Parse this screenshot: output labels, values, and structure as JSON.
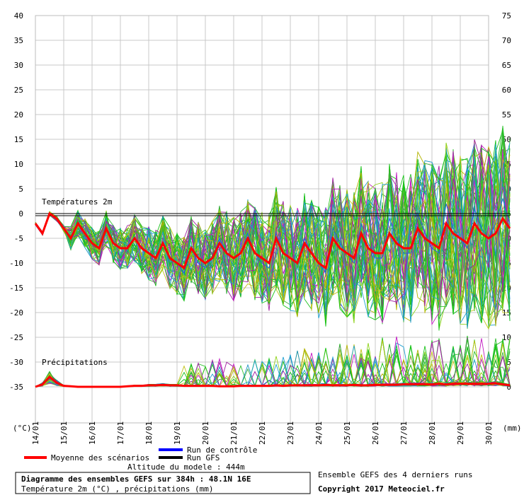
{
  "chart_data": {
    "type": "line",
    "title": "Diagramme des ensembles GEFS sur 384h : 48.1N 16E",
    "subtitle": "Température 2m (°C) , précipitations (mm)",
    "left_axis_unit": "(°C)",
    "right_axis_unit": "(mm)",
    "temp_axis": {
      "min": -35,
      "max": 40,
      "ticks": [
        40,
        35,
        30,
        25,
        20,
        15,
        10,
        5,
        0,
        -5,
        -10,
        -15,
        -20,
        -25,
        -30,
        -35
      ]
    },
    "precip_axis": {
      "ticks": [
        75,
        70,
        65,
        60,
        55,
        50,
        45,
        40,
        35,
        30,
        25,
        20,
        15,
        10,
        5,
        0
      ]
    },
    "dates": [
      "14/01",
      "15/01",
      "16/01",
      "17/01",
      "18/01",
      "19/01",
      "20/01",
      "21/01",
      "22/01",
      "23/01",
      "24/01",
      "25/01",
      "26/01",
      "27/01",
      "28/01",
      "29/01",
      "30/01"
    ],
    "section_labels": {
      "temperature": "Températures 2m",
      "precipitation": "Précipitations"
    },
    "altitude": "Altitude du modele : 444m",
    "legend": [
      {
        "name": "Moyenne des scénarios",
        "color": "#ff0000"
      },
      {
        "name": "Run de contrôle",
        "color": "#0000ff"
      },
      {
        "name": "Run GFS",
        "color": "#000000"
      }
    ],
    "footer_note": "Ensemble GEFS des 4 derniers runs",
    "copyright": "Copyright 2017 Meteociel.fr",
    "steps_per_day": 4,
    "mean_temperature": [
      -2,
      -4,
      0,
      -1,
      -3,
      -5,
      -2,
      -4,
      -6,
      -7,
      -3,
      -6,
      -7,
      -7,
      -5,
      -7,
      -8,
      -9,
      -6,
      -9,
      -10,
      -11,
      -7,
      -9,
      -10,
      -9,
      -6,
      -8,
      -9,
      -8,
      -5,
      -8,
      -9,
      -10,
      -5,
      -8,
      -9,
      -10,
      -6,
      -8,
      -10,
      -11,
      -5,
      -7,
      -8,
      -9,
      -4,
      -7,
      -8,
      -8,
      -4,
      -6,
      -7,
      -7,
      -3,
      -5,
      -6,
      -7,
      -2,
      -4,
      -5,
      -6,
      -2,
      -4,
      -5,
      -4,
      -1,
      -3
    ],
    "control_temperature": [
      -2,
      -4,
      0,
      -1,
      -3,
      -5,
      -2,
      -4,
      -6,
      -7,
      -3,
      -6,
      -7,
      -7,
      -5,
      -7,
      -8,
      -9,
      -6,
      -9,
      -10,
      -12,
      -7,
      -10,
      -11,
      -9,
      -5,
      -8,
      -9,
      -8,
      -4,
      -8,
      -10,
      -11,
      -4,
      -8,
      -9,
      -10,
      -5,
      -8,
      -10,
      -12,
      -3,
      -6,
      -8,
      -10,
      -2,
      -6,
      -9,
      -9,
      -1,
      -5,
      -8,
      -8,
      0,
      -4,
      -7,
      -8,
      2,
      -3,
      -5,
      -7,
      1,
      -3,
      -5,
      -2,
      3,
      -2
    ],
    "gfs_temperature": [
      0,
      0,
      0,
      0,
      0,
      0,
      0,
      0,
      0,
      0,
      0,
      0,
      0,
      0,
      0,
      0,
      0,
      0,
      0,
      0,
      0,
      0,
      0,
      0,
      0,
      0,
      0,
      0,
      0,
      0,
      0,
      0,
      0,
      0,
      0,
      0,
      0,
      0,
      0,
      0,
      0,
      0,
      0,
      0,
      0,
      0,
      0,
      0,
      0,
      0,
      0,
      0,
      0,
      0,
      0,
      0,
      0,
      0,
      0,
      0,
      0,
      0,
      0,
      0,
      0,
      0,
      0,
      0
    ],
    "mean_precipitation": [
      0,
      0.5,
      2,
      0.8,
      0.2,
      0.1,
      0,
      0,
      0,
      0,
      0,
      0,
      0,
      0.1,
      0.2,
      0.2,
      0.3,
      0.3,
      0.4,
      0.3,
      0.3,
      0.2,
      0.2,
      0.2,
      0.2,
      0.2,
      0.1,
      0.1,
      0.1,
      0.2,
      0.2,
      0.2,
      0.2,
      0.2,
      0.3,
      0.2,
      0.3,
      0.3,
      0.3,
      0.3,
      0.3,
      0.4,
      0.3,
      0.3,
      0.3,
      0.4,
      0.3,
      0.3,
      0.4,
      0.4,
      0.4,
      0.4,
      0.5,
      0.5,
      0.5,
      0.5,
      0.5,
      0.6,
      0.5,
      0.6,
      0.6,
      0.6,
      0.6,
      0.6,
      0.6,
      0.7,
      0.5,
      0.3
    ],
    "ensemble_spread_temperature": {
      "start": 1,
      "growth_per_day": 1.1
    },
    "ensemble_spread_precip_max": 10
  }
}
